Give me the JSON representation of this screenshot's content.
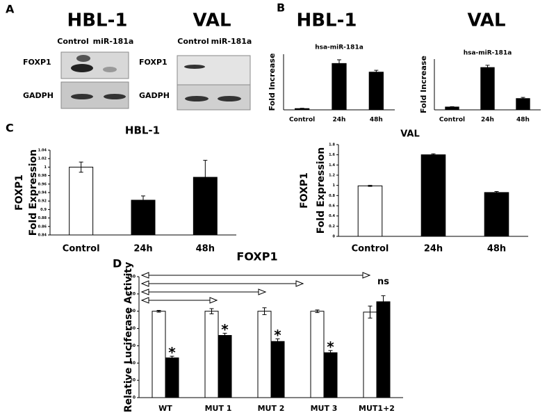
{
  "panel_a": {
    "label": "A",
    "blots": [
      {
        "title": "HBL-1",
        "lanes": [
          "Control",
          "miR-181a"
        ],
        "rows": [
          "FOXP1",
          "GADPH"
        ]
      },
      {
        "title": "VAL",
        "lanes": [
          "Control",
          "miR-181a"
        ],
        "rows": [
          "FOXP1",
          "GADPH"
        ]
      }
    ]
  },
  "panel_labels": [
    "B",
    "C",
    "D"
  ],
  "chart_data": [
    {
      "type": "bar",
      "title": "HBL-1",
      "subtitle": "hsa-miR-181a",
      "ylabel": [
        "Fold Increase"
      ],
      "categories": [
        "Control",
        "24h",
        "48h"
      ],
      "values": [
        0.2,
        7.5,
        6.1
      ],
      "errors": [
        0.05,
        0.6,
        0.3
      ],
      "color": "#000000",
      "ylim": [
        0,
        9
      ]
    },
    {
      "type": "bar",
      "title": "VAL",
      "subtitle": "hsa-miR-181a",
      "ylabel": [
        "Fold Increase"
      ],
      "categories": [
        "Control",
        "24h",
        "48h"
      ],
      "values": [
        0.5,
        7.5,
        2.0
      ],
      "errors": [
        0.05,
        0.4,
        0.2
      ],
      "color": "#000000",
      "ylim": [
        0,
        9
      ]
    },
    {
      "type": "bar",
      "title": "HBL-1",
      "ylabel": [
        "FOXP1",
        "Fold Expression"
      ],
      "categories": [
        "Control",
        "24h",
        "48h"
      ],
      "values": [
        1.0,
        0.922,
        0.976
      ],
      "errors": [
        0.012,
        0.01,
        0.04
      ],
      "colors": [
        "#ffffff",
        "#000000",
        "#000000"
      ],
      "ylim": [
        0.84,
        1.04
      ],
      "yticks": [
        {
          "value": 0.84,
          "label": "0.84"
        },
        {
          "value": 0.86,
          "label": "0.86"
        },
        {
          "value": 0.88,
          "label": "0.88"
        },
        {
          "value": 0.9,
          "label": "0.9"
        },
        {
          "value": 0.92,
          "label": "0.92"
        },
        {
          "value": 0.94,
          "label": "0.94"
        },
        {
          "value": 0.96,
          "label": "0.96"
        },
        {
          "value": 0.98,
          "label": "0.98"
        },
        1,
        {
          "value": 1.02,
          "label": "1.02"
        },
        {
          "value": 1.04,
          "label": "1.04"
        }
      ]
    },
    {
      "type": "bar",
      "title": "VAL",
      "ylabel": [
        "FOXP1",
        "Fold Expression"
      ],
      "categories": [
        "Control",
        "24h",
        "48h"
      ],
      "values": [
        0.99,
        1.6,
        0.86
      ],
      "errors": [
        0.01,
        0.02,
        0.02
      ],
      "colors": [
        "#ffffff",
        "#000000",
        "#000000"
      ],
      "ylim": [
        0,
        1.8
      ],
      "yticks": [
        0,
        {
          "value": 0.2,
          "label": "0.2"
        },
        {
          "value": 0.4,
          "label": "0.4"
        },
        {
          "value": 0.6,
          "label": "0.6"
        },
        {
          "value": 0.8,
          "label": "0.8"
        },
        1,
        {
          "value": 1.2,
          "label": "1.2"
        },
        {
          "value": 1.4,
          "label": "1.4"
        },
        {
          "value": 1.6,
          "label": "1.6"
        },
        {
          "value": 1.8,
          "label": "1.8"
        }
      ]
    },
    {
      "type": "bar",
      "title": "FOXP1",
      "ylabel": [
        "Relative Luciferase Activity"
      ],
      "categories": [
        "WT",
        "MUT 1",
        "MUT 2",
        "MUT 3",
        "MUT1+2"
      ],
      "series": [
        {
          "color": "#ffffff",
          "values": [
            100,
            100,
            100,
            100,
            99
          ],
          "errors": [
            1,
            3,
            4,
            1.5,
            7
          ]
        },
        {
          "color": "#000000",
          "values": [
            46,
            72,
            65,
            52,
            111
          ],
          "errors": [
            2,
            2.5,
            3,
            2.5,
            7
          ]
        }
      ],
      "annotations": [
        "*",
        "*",
        "*",
        "*",
        "ns"
      ],
      "ylim": [
        0,
        140
      ],
      "yticks": [
        0,
        20,
        40,
        60,
        80,
        100,
        120,
        140
      ]
    }
  ]
}
